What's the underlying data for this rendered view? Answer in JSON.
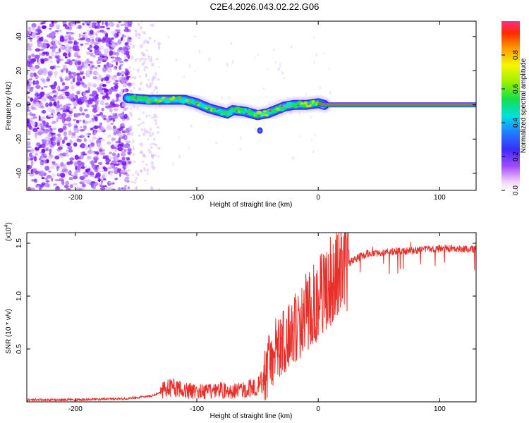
{
  "title": "C2E4.2026.043.02.22.G06",
  "colors": {
    "snr_line": "#e8302b",
    "track_low": "#4a3cff",
    "noise": "#7a1cff"
  },
  "chart_data": [
    {
      "type": "heatmap",
      "name": "spectrogram",
      "xlabel": "Height of straight line (km)",
      "ylabel": "Frequency (Hz)",
      "xlim": [
        -240,
        130
      ],
      "ylim": [
        -50,
        49
      ],
      "xticks": [
        -200,
        -100,
        0,
        100
      ],
      "xtick_labels": [
        "-200",
        "-100",
        "0",
        "100"
      ],
      "yticks": [
        -40,
        -20,
        0,
        20,
        40
      ],
      "ytick_labels": [
        "-40",
        "-20",
        "0",
        "20",
        "40"
      ],
      "ridge": {
        "heights_km": [
          -157,
          -140,
          -125,
          -110,
          -100,
          -90,
          -80,
          -75,
          -70,
          -60,
          -50,
          -42,
          -35,
          -28,
          -20,
          -10,
          0,
          5,
          20,
          50,
          80,
          100,
          130
        ],
        "frequency_hz": [
          4,
          3,
          3,
          3,
          1,
          -2,
          -4,
          -5,
          -3,
          -4,
          -6,
          -5,
          -3,
          -1,
          0,
          0,
          1,
          0,
          0,
          0,
          0,
          0,
          0
        ]
      },
      "colorbar": {
        "label": "Normalized spectral amplitude",
        "range": [
          0,
          1
        ],
        "ticks": [
          0.0,
          0.2,
          0.4,
          0.6,
          0.8
        ],
        "tick_labels": [
          "0.0",
          "0.2",
          "0.4",
          "0.6",
          "0.8"
        ]
      }
    },
    {
      "type": "line",
      "name": "snr",
      "xlabel": "Height of straight line (km)",
      "ylabel": "SNR (10 * v/v)",
      "y_multiplier": "(x10",
      "y_multiplier_exp": "4",
      "xlim": [
        -240,
        130
      ],
      "ylim": [
        0,
        1.6
      ],
      "xticks": [
        -200,
        -100,
        0,
        100
      ],
      "xtick_labels": [
        "-200",
        "-100",
        "0",
        "100"
      ],
      "yticks": [
        0.5,
        1.0,
        1.5
      ],
      "ytick_labels": [
        "0.5",
        "1.0",
        "1.5"
      ],
      "series": [
        {
          "name": "SNR",
          "x": [
            -240,
            -200,
            -160,
            -140,
            -125,
            -120,
            -110,
            -100,
            -90,
            -80,
            -70,
            -60,
            -50,
            -45,
            -40,
            -35,
            -30,
            -25,
            -20,
            -15,
            -10,
            -5,
            0,
            10,
            20,
            30,
            40,
            60,
            80,
            100,
            120,
            130
          ],
          "y": [
            0.02,
            0.02,
            0.03,
            0.05,
            0.1,
            0.12,
            0.09,
            0.08,
            0.08,
            0.09,
            0.08,
            0.1,
            0.12,
            0.18,
            0.35,
            0.45,
            0.5,
            0.55,
            0.65,
            0.7,
            0.8,
            0.85,
            0.95,
            1.1,
            1.25,
            1.35,
            1.4,
            1.42,
            1.43,
            1.45,
            1.45,
            1.44
          ]
        }
      ]
    }
  ]
}
